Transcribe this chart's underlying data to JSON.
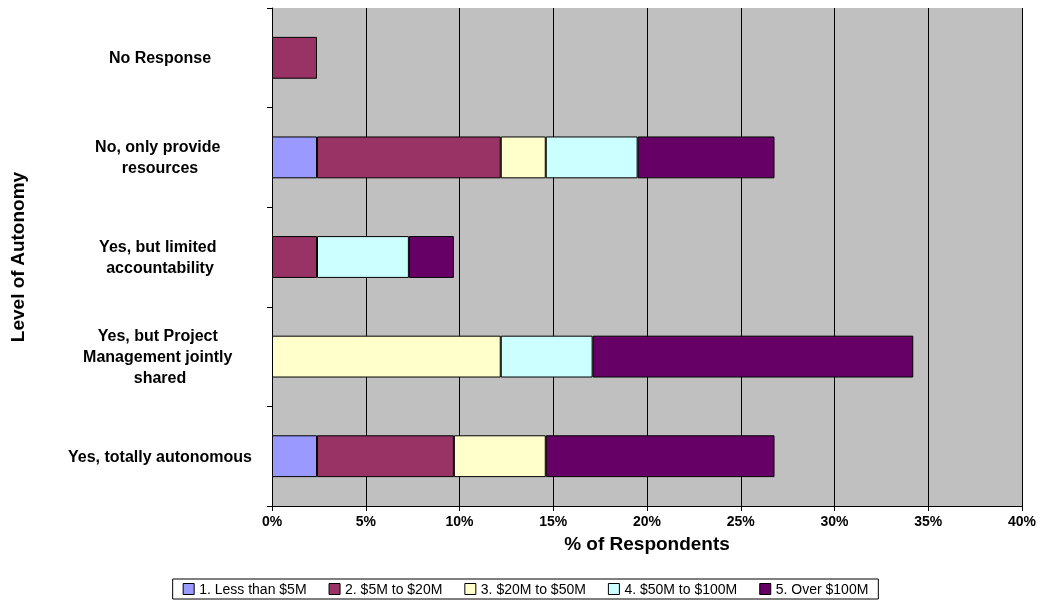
{
  "chart_data": {
    "type": "bar",
    "orientation": "horizontal",
    "stacked": true,
    "xlabel": "% of Respondents",
    "ylabel": "Level of Autonomy",
    "categories": [
      "No Response",
      "No, only provide resources",
      "Yes, but limited accountability",
      "Yes, but Project Management jointly shared",
      "Yes, totally autonomous"
    ],
    "series": [
      {
        "name": "1. Less than $5M",
        "color": "#9999ff",
        "values": [
          null,
          2.4,
          null,
          null,
          2.4
        ]
      },
      {
        "name": "2. $5M to $20M",
        "color": "#993366",
        "values": [
          2.4,
          9.8,
          2.4,
          null,
          7.3
        ]
      },
      {
        "name": "3. $20M to $50M",
        "color": "#ffffcc",
        "values": [
          null,
          2.4,
          null,
          12.2,
          4.9
        ]
      },
      {
        "name": "4. $50M to $100M",
        "color": "#ccffff",
        "values": [
          null,
          4.9,
          4.9,
          4.9,
          null
        ]
      },
      {
        "name": "5. Over $100M",
        "color": "#660066",
        "values": [
          null,
          7.3,
          2.4,
          17.1,
          12.2
        ]
      }
    ],
    "xlim": [
      0,
      40
    ],
    "xticks": [
      {
        "value": 0,
        "label": "0%"
      },
      {
        "value": 5,
        "label": "5%"
      },
      {
        "value": 10,
        "label": "10%"
      },
      {
        "value": 15,
        "label": "15%"
      },
      {
        "value": 20,
        "label": "20%"
      },
      {
        "value": 25,
        "label": "25%"
      },
      {
        "value": 30,
        "label": "30%"
      },
      {
        "value": 35,
        "label": "35%"
      },
      {
        "value": 40,
        "label": "40%"
      }
    ],
    "grid": "x",
    "legend": "bottom"
  }
}
